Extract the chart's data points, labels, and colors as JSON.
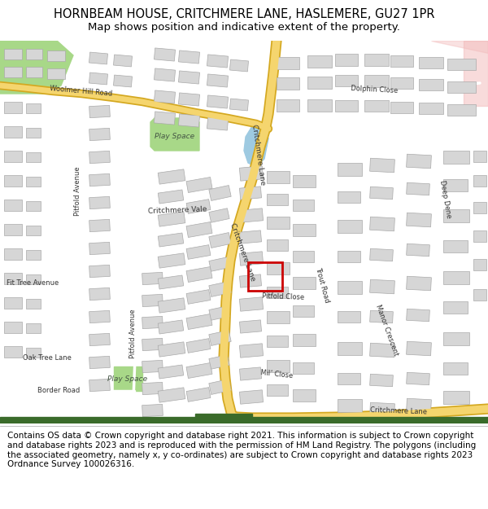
{
  "title_line1": "HORNBEAM HOUSE, CRITCHMERE LANE, HASLEMERE, GU27 1PR",
  "title_line2": "Map shows position and indicative extent of the property.",
  "footer_text": "Contains OS data © Crown copyright and database right 2021. This information is subject to Crown copyright and database rights 2023 and is reproduced with the permission of HM Land Registry. The polygons (including the associated geometry, namely x, y co-ordinates) are subject to Crown copyright and database rights 2023 Ordnance Survey 100026316.",
  "title_fontsize": 10.5,
  "title2_fontsize": 9.5,
  "footer_fontsize": 7.5,
  "bg_color": "#ffffff",
  "map_bg": "#f0ede8",
  "road_yellow": "#f5d56e",
  "road_yellow_border": "#d4a820",
  "road_white": "#ffffff",
  "road_white_border": "#cccccc",
  "building_color": "#d6d6d6",
  "building_edge": "#aaaaaa",
  "green_area": "#a8d888",
  "water_color": "#9ecae1",
  "highlight_color": "#cc0000",
  "text_color": "#555555",
  "road_label_color": "#333333",
  "map_border_color": "#999999",
  "pink_area": "#f2b8b8",
  "green_stripe": "#4a7a3a"
}
